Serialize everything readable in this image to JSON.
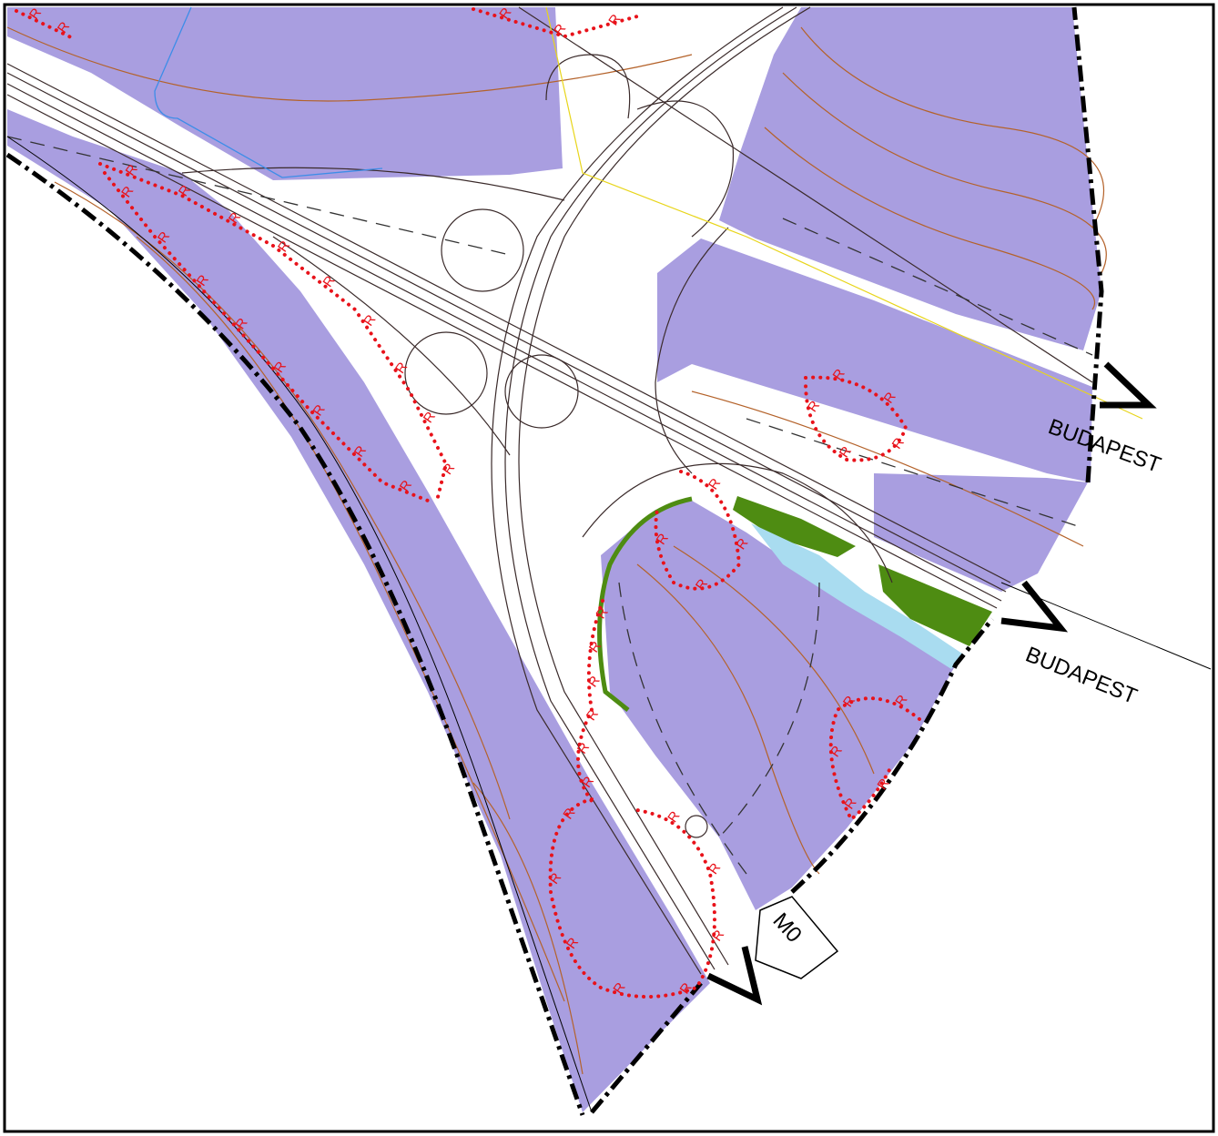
{
  "labels": {
    "budapest_upper": "BUDAPEST",
    "budapest_lower": "BUDAPEST",
    "motorway": "M0"
  },
  "r_routes": [
    [
      "R",
      "R",
      "R",
      "R",
      "R",
      "R",
      "R",
      "R",
      "R"
    ],
    [
      "R",
      "R",
      "R",
      "R",
      "R",
      "R",
      "R",
      "R"
    ],
    [
      "R",
      "R"
    ],
    [
      "R",
      "R",
      "R"
    ],
    [
      "R",
      "R",
      "R",
      "R",
      "R"
    ],
    [
      "R",
      "R",
      "R",
      "R"
    ],
    [
      "R",
      "R",
      "R",
      "R",
      "R",
      "R"
    ],
    [
      "R",
      "R",
      "R",
      "R",
      "R",
      "R",
      "R",
      "R"
    ],
    [
      "R",
      "R",
      "R",
      "R",
      "R"
    ]
  ]
}
